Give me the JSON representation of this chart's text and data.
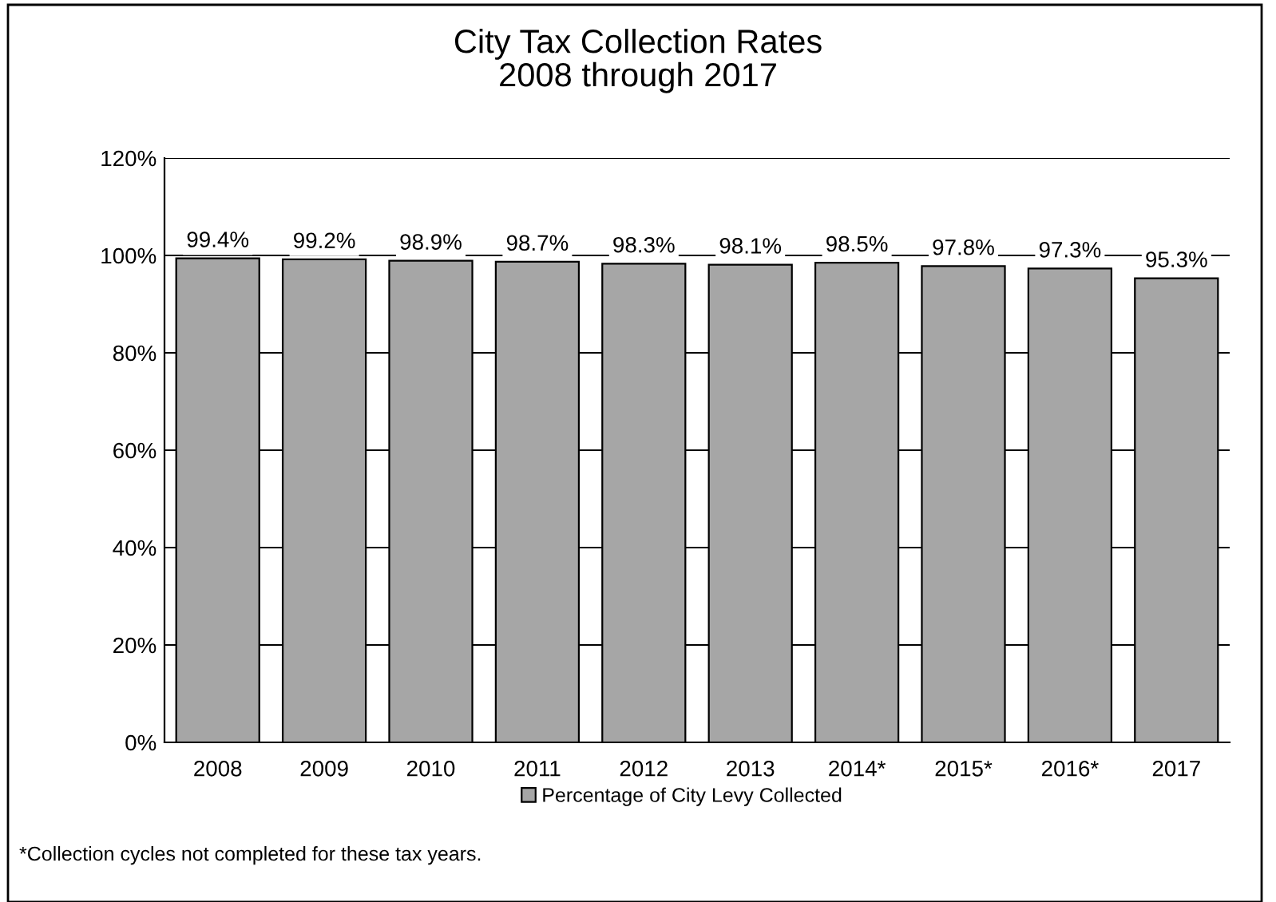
{
  "chart_data": {
    "type": "bar",
    "title": "City Tax Collection Rates\n2008 through 2017",
    "categories": [
      "2008",
      "2009",
      "2010",
      "2011",
      "2012",
      "2013",
      "2014*",
      "2015*",
      "2016*",
      "2017"
    ],
    "series": [
      {
        "name": "Percentage of City Levy Collected",
        "color": "#a6a6a6",
        "values": [
          99.4,
          99.2,
          98.9,
          98.7,
          98.3,
          98.1,
          98.5,
          97.8,
          97.3,
          95.3
        ],
        "value_labels": [
          "99.4%",
          "99.2%",
          "98.9%",
          "98.7%",
          "98.3%",
          "98.1%",
          "98.5%",
          "97.8%",
          "97.3%",
          "95.3%"
        ]
      }
    ],
    "ylim": [
      0,
      120
    ],
    "yticks": [
      {
        "value": 0,
        "label": "0%"
      },
      {
        "value": 20,
        "label": "20%"
      },
      {
        "value": 40,
        "label": "40%"
      },
      {
        "value": 60,
        "label": "60%"
      },
      {
        "value": 80,
        "label": "80%"
      },
      {
        "value": 100,
        "label": "100%"
      },
      {
        "value": 120,
        "label": "120%"
      }
    ],
    "grid": "y",
    "legend": "bottom",
    "annotations": [
      "*Collection cycles not completed for these tax years."
    ]
  }
}
